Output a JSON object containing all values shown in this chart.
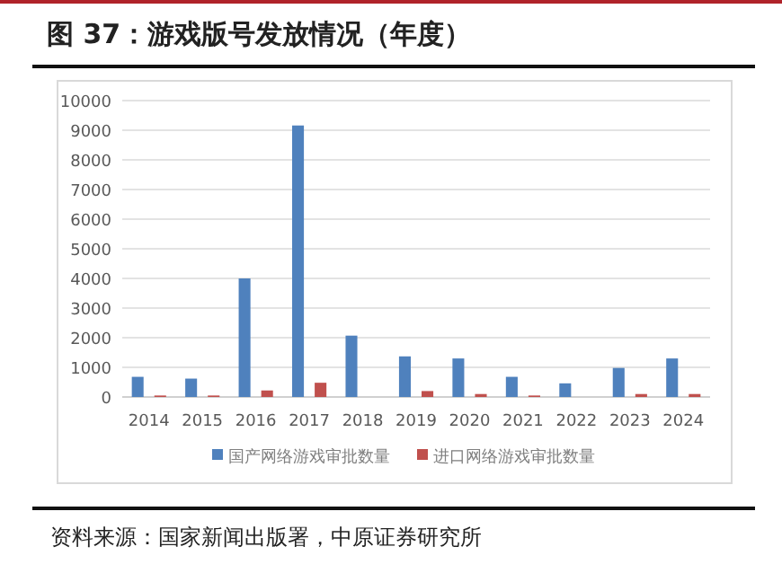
{
  "chart_data": {
    "type": "bar",
    "title": "图 37：游戏版号发放情况（年度）",
    "categories": [
      "2014",
      "2015",
      "2016",
      "2017",
      "2018",
      "2019",
      "2020",
      "2021",
      "2022",
      "2023",
      "2024"
    ],
    "series": [
      {
        "name": "国产网络游戏审批数量",
        "color": "#4f81bd",
        "values": [
          680,
          620,
          4000,
          9160,
          2070,
          1370,
          1300,
          680,
          460,
          980,
          1300
        ]
      },
      {
        "name": "进口网络游戏审批数量",
        "color": "#c0504d",
        "values": [
          50,
          50,
          220,
          480,
          0,
          200,
          100,
          50,
          0,
          100,
          100
        ]
      }
    ],
    "ylim": [
      0,
      10000
    ],
    "yticks": [
      0,
      1000,
      2000,
      3000,
      4000,
      5000,
      6000,
      7000,
      8000,
      9000,
      10000
    ],
    "grid": "y",
    "legend": "bottom",
    "annotations": [
      "资料来源：国家新闻出版署，中原证券研究所"
    ]
  }
}
